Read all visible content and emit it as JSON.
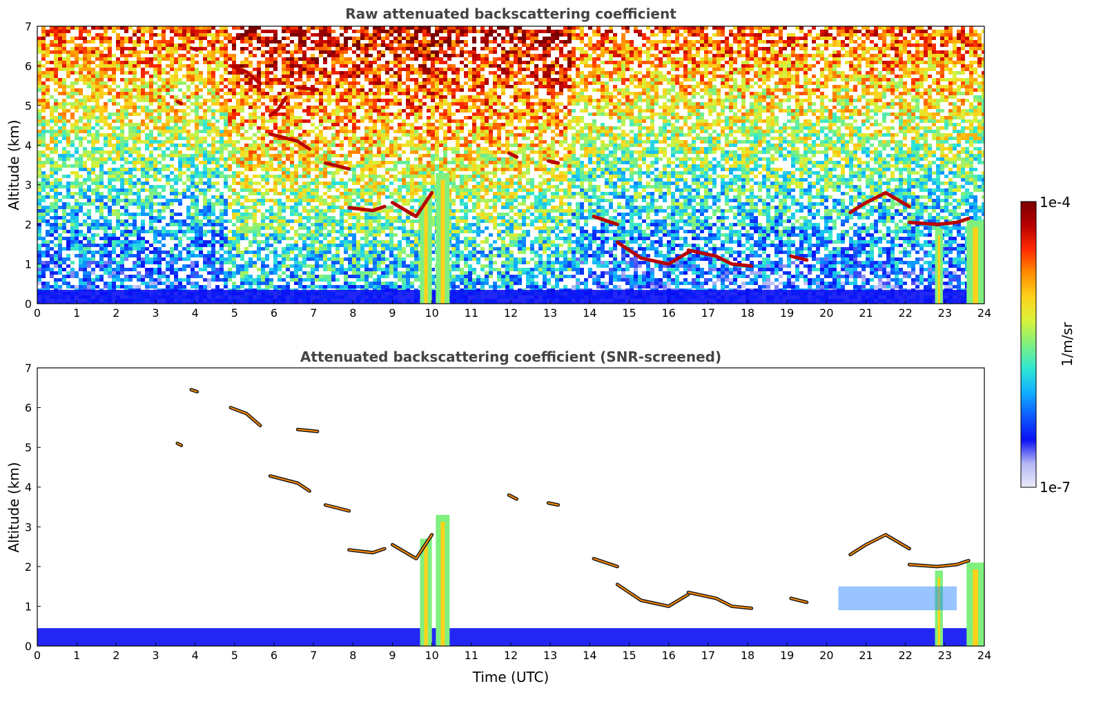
{
  "chart_data": [
    {
      "type": "heatmap",
      "title": "Raw attenuated backscattering coefficient",
      "xlabel": "",
      "ylabel": "Altitude (km)",
      "xlim": [
        0,
        24
      ],
      "ylim": [
        0,
        7
      ],
      "xticks": [
        "0",
        "1",
        "2",
        "3",
        "4",
        "5",
        "6",
        "7",
        "8",
        "9",
        "10",
        "11",
        "12",
        "13",
        "14",
        "15",
        "16",
        "17",
        "18",
        "19",
        "20",
        "21",
        "22",
        "23",
        "24"
      ],
      "yticks": [
        "0",
        "1",
        "2",
        "3",
        "4",
        "5",
        "6",
        "7"
      ],
      "noise": "high",
      "features": [
        {
          "kind": "surface_layer",
          "x": [
            0,
            24
          ],
          "y_top": 0.35
        },
        {
          "kind": "precip_column",
          "x": [
            9.7,
            10.0
          ],
          "y_top": 2.7
        },
        {
          "kind": "precip_column",
          "x": [
            10.1,
            10.45
          ],
          "y_top": 3.3
        },
        {
          "kind": "precip_column",
          "x": [
            22.75,
            22.95
          ],
          "y_top": 1.9
        },
        {
          "kind": "precip_column",
          "x": [
            23.55,
            24.0
          ],
          "y_top": 2.1
        },
        {
          "kind": "cloud",
          "points": [
            [
              3.9,
              6.45
            ],
            [
              4.05,
              6.4
            ]
          ]
        },
        {
          "kind": "cloud",
          "points": [
            [
              3.55,
              5.1
            ],
            [
              3.65,
              5.05
            ]
          ]
        },
        {
          "kind": "cloud",
          "points": [
            [
              4.9,
              6.0
            ],
            [
              5.3,
              5.85
            ],
            [
              5.65,
              5.55
            ]
          ]
        },
        {
          "kind": "cloud",
          "points": [
            [
              5.9,
              4.75
            ],
            [
              6.1,
              4.9
            ],
            [
              6.3,
              5.2
            ]
          ]
        },
        {
          "kind": "cloud",
          "points": [
            [
              6.6,
              5.45
            ],
            [
              7.1,
              5.4
            ]
          ]
        },
        {
          "kind": "cloud",
          "points": [
            [
              5.9,
              4.28
            ],
            [
              6.6,
              4.1
            ],
            [
              6.9,
              3.9
            ]
          ]
        },
        {
          "kind": "cloud",
          "points": [
            [
              7.3,
              3.55
            ],
            [
              7.9,
              3.4
            ]
          ]
        },
        {
          "kind": "cloud",
          "points": [
            [
              7.9,
              2.42
            ],
            [
              8.5,
              2.35
            ],
            [
              8.8,
              2.45
            ]
          ]
        },
        {
          "kind": "cloud",
          "points": [
            [
              9.0,
              2.55
            ],
            [
              9.6,
              2.2
            ],
            [
              10.0,
              2.8
            ]
          ]
        },
        {
          "kind": "cloud",
          "points": [
            [
              11.95,
              3.8
            ],
            [
              12.15,
              3.7
            ]
          ]
        },
        {
          "kind": "cloud",
          "points": [
            [
              12.95,
              3.6
            ],
            [
              13.2,
              3.55
            ]
          ]
        },
        {
          "kind": "cloud",
          "points": [
            [
              14.1,
              2.2
            ],
            [
              14.7,
              2.0
            ]
          ]
        },
        {
          "kind": "cloud",
          "points": [
            [
              14.7,
              1.55
            ],
            [
              15.3,
              1.15
            ],
            [
              16.0,
              1.0
            ],
            [
              16.5,
              1.3
            ]
          ]
        },
        {
          "kind": "cloud",
          "points": [
            [
              16.5,
              1.35
            ],
            [
              17.2,
              1.2
            ],
            [
              17.6,
              1.0
            ],
            [
              18.1,
              0.95
            ]
          ]
        },
        {
          "kind": "cloud",
          "points": [
            [
              19.1,
              1.2
            ],
            [
              19.5,
              1.1
            ]
          ]
        },
        {
          "kind": "cloud",
          "points": [
            [
              20.6,
              2.3
            ],
            [
              21.0,
              2.55
            ],
            [
              21.5,
              2.8
            ],
            [
              22.1,
              2.45
            ]
          ]
        },
        {
          "kind": "cloud",
          "points": [
            [
              22.1,
              2.05
            ],
            [
              22.8,
              2.0
            ],
            [
              23.3,
              2.05
            ],
            [
              23.6,
              2.15
            ]
          ]
        }
      ]
    },
    {
      "type": "heatmap",
      "title": "Attenuated backscattering coefficient (SNR-screened)",
      "xlabel": "Time (UTC)",
      "ylabel": "Altitude (km)",
      "xlim": [
        0,
        24
      ],
      "ylim": [
        0,
        7
      ],
      "xticks": [
        "0",
        "1",
        "2",
        "3",
        "4",
        "5",
        "6",
        "7",
        "8",
        "9",
        "10",
        "11",
        "12",
        "13",
        "14",
        "15",
        "16",
        "17",
        "18",
        "19",
        "20",
        "21",
        "22",
        "23",
        "24"
      ],
      "yticks": [
        "0",
        "1",
        "2",
        "3",
        "4",
        "5",
        "6",
        "7"
      ],
      "noise": "none",
      "features": [
        {
          "kind": "surface_layer",
          "x": [
            0,
            24
          ],
          "y_top": 0.45
        },
        {
          "kind": "precip_column",
          "x": [
            9.7,
            10.0
          ],
          "y_top": 2.7
        },
        {
          "kind": "precip_column",
          "x": [
            10.1,
            10.45
          ],
          "y_top": 3.3
        },
        {
          "kind": "precip_column",
          "x": [
            22.75,
            22.95
          ],
          "y_top": 1.9
        },
        {
          "kind": "precip_column",
          "x": [
            23.55,
            24.0
          ],
          "y_top": 2.1
        },
        {
          "kind": "cloud",
          "points": [
            [
              3.9,
              6.45
            ],
            [
              4.05,
              6.4
            ]
          ]
        },
        {
          "kind": "cloud",
          "points": [
            [
              3.55,
              5.1
            ],
            [
              3.65,
              5.05
            ]
          ]
        },
        {
          "kind": "cloud",
          "points": [
            [
              4.9,
              6.0
            ],
            [
              5.3,
              5.85
            ],
            [
              5.65,
              5.55
            ]
          ]
        },
        {
          "kind": "cloud",
          "points": [
            [
              6.6,
              5.45
            ],
            [
              7.1,
              5.4
            ]
          ]
        },
        {
          "kind": "cloud",
          "points": [
            [
              5.9,
              4.28
            ],
            [
              6.6,
              4.1
            ],
            [
              6.9,
              3.9
            ]
          ]
        },
        {
          "kind": "cloud",
          "points": [
            [
              7.3,
              3.55
            ],
            [
              7.9,
              3.4
            ]
          ]
        },
        {
          "kind": "cloud",
          "points": [
            [
              7.9,
              2.42
            ],
            [
              8.5,
              2.35
            ],
            [
              8.8,
              2.45
            ]
          ]
        },
        {
          "kind": "cloud",
          "points": [
            [
              9.0,
              2.55
            ],
            [
              9.6,
              2.2
            ],
            [
              10.0,
              2.8
            ]
          ]
        },
        {
          "kind": "cloud",
          "points": [
            [
              11.95,
              3.8
            ],
            [
              12.15,
              3.7
            ]
          ]
        },
        {
          "kind": "cloud",
          "points": [
            [
              12.95,
              3.6
            ],
            [
              13.2,
              3.55
            ]
          ]
        },
        {
          "kind": "cloud",
          "points": [
            [
              14.1,
              2.2
            ],
            [
              14.7,
              2.0
            ]
          ]
        },
        {
          "kind": "cloud",
          "points": [
            [
              14.7,
              1.55
            ],
            [
              15.3,
              1.15
            ],
            [
              16.0,
              1.0
            ],
            [
              16.5,
              1.3
            ]
          ]
        },
        {
          "kind": "cloud",
          "points": [
            [
              16.5,
              1.35
            ],
            [
              17.2,
              1.2
            ],
            [
              17.6,
              1.0
            ],
            [
              18.1,
              0.95
            ]
          ]
        },
        {
          "kind": "cloud",
          "points": [
            [
              19.1,
              1.2
            ],
            [
              19.5,
              1.1
            ]
          ]
        },
        {
          "kind": "cloud",
          "points": [
            [
              20.6,
              2.3
            ],
            [
              21.0,
              2.55
            ],
            [
              21.5,
              2.8
            ],
            [
              22.1,
              2.45
            ]
          ]
        },
        {
          "kind": "cloud",
          "points": [
            [
              22.1,
              2.05
            ],
            [
              22.8,
              2.0
            ],
            [
              23.3,
              2.05
            ],
            [
              23.6,
              2.15
            ]
          ]
        },
        {
          "kind": "aerosol_layer",
          "x": [
            20.3,
            23.3
          ],
          "y_top": 1.5
        }
      ]
    }
  ],
  "colorbar": {
    "label": "1/m/sr",
    "max_label": "1e-4",
    "min_label": "1e-7",
    "colormap": [
      "#ecebf8",
      "#b4b6f4",
      "#0a10f5",
      "#0e5cff",
      "#10b0ff",
      "#30e7d2",
      "#7ff07e",
      "#d8f23a",
      "#ffd21a",
      "#ff8c00",
      "#ff2a00",
      "#b80000",
      "#7a0000"
    ]
  }
}
